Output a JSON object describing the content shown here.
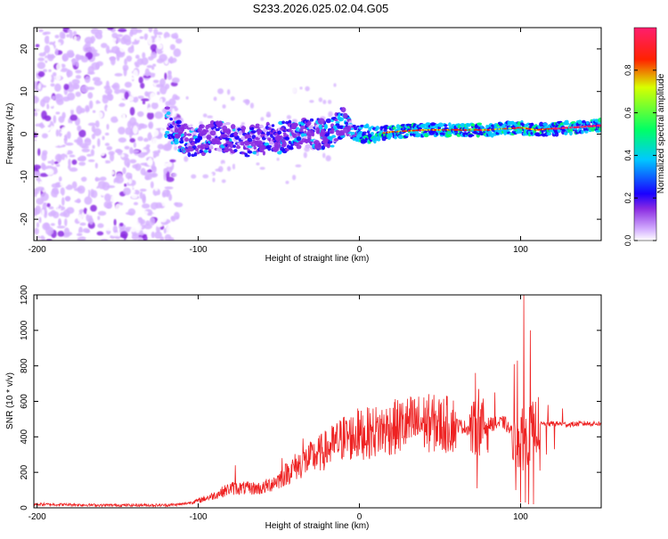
{
  "figure_title": "S233.2026.025.02.04.G05",
  "chart_data": [
    {
      "type": "heatmap",
      "title": "S233.2026.025.02.04.G05",
      "xlabel": "Height of straight line (km)",
      "ylabel": "Frequency (Hz)",
      "xlim": [
        -202,
        150
      ],
      "ylim": [
        -25,
        25
      ],
      "xticks": [
        -200,
        -100,
        0,
        100
      ],
      "xtick_labels": [
        "-200",
        "-100",
        "0",
        "100"
      ],
      "yticks": [
        -20,
        -10,
        0,
        10,
        20
      ],
      "ytick_labels": [
        "-20",
        "-10",
        "0",
        "10",
        "20"
      ],
      "colorbar": {
        "label": "Normalized spectral amplitude",
        "range": [
          0,
          1
        ],
        "ticks": [
          0.0,
          0.2,
          0.4,
          0.6,
          0.8
        ],
        "tick_labels": [
          "0.0",
          "0.2",
          "0.4",
          "0.6",
          "0.8"
        ],
        "colors": [
          "#ffffff",
          "#d6b3ff",
          "#8a2be2",
          "#1a00ff",
          "#00c8ff",
          "#00ff66",
          "#d8ff00",
          "#ff2200",
          "#ff1e6e"
        ]
      },
      "ridge": [
        [
          -120,
          3
        ],
        [
          -110,
          -1
        ],
        [
          -100,
          -2
        ],
        [
          -90,
          0
        ],
        [
          -80,
          -1
        ],
        [
          -70,
          -2
        ],
        [
          -60,
          -1
        ],
        [
          -50,
          -1
        ],
        [
          -40,
          0
        ],
        [
          -30,
          0
        ],
        [
          -20,
          0
        ],
        [
          -15,
          1
        ],
        [
          -10,
          3
        ],
        [
          -5,
          1
        ],
        [
          0,
          0
        ],
        [
          10,
          0
        ],
        [
          20,
          0.5
        ],
        [
          40,
          1
        ],
        [
          60,
          1
        ],
        [
          80,
          1
        ],
        [
          100,
          1.5
        ],
        [
          110,
          1
        ],
        [
          130,
          1.5
        ],
        [
          150,
          2
        ]
      ]
    },
    {
      "type": "line",
      "xlabel": "Height of straight line (km)",
      "ylabel": "SNR (10 * v/v)",
      "xlim": [
        -202,
        150
      ],
      "ylim": [
        0,
        1200
      ],
      "xticks": [
        -200,
        -100,
        0,
        100
      ],
      "xtick_labels": [
        "-200",
        "-100",
        "0",
        "100"
      ],
      "yticks": [
        0,
        200,
        400,
        600,
        800,
        1000,
        1200
      ],
      "ytick_labels": [
        "0",
        "200",
        "400",
        "600",
        "800",
        "1000",
        "1200"
      ],
      "series": [
        {
          "name": "SNR",
          "color": "#ee2222",
          "x": [
            -202,
            -180,
            -160,
            -140,
            -120,
            -110,
            -100,
            -90,
            -80,
            -70,
            -60,
            -50,
            -40,
            -30,
            -20,
            -10,
            0,
            10,
            20,
            30,
            40,
            50,
            60,
            70,
            80,
            90,
            100,
            110,
            120,
            130,
            140,
            150
          ],
          "y": [
            20,
            18,
            15,
            15,
            15,
            20,
            40,
            70,
            110,
            110,
            110,
            160,
            230,
            280,
            330,
            390,
            410,
            430,
            450,
            470,
            480,
            470,
            470,
            440,
            470,
            480,
            350,
            470,
            475,
            470,
            475,
            475
          ],
          "spikes": [
            [
              -77,
              240
            ],
            [
              -48,
              280
            ],
            [
              -35,
              390
            ],
            [
              -10,
              510
            ],
            [
              -1,
              560
            ],
            [
              20,
              480
            ],
            [
              72,
              760
            ],
            [
              74,
              670
            ],
            [
              84,
              650
            ],
            [
              96,
              810
            ],
            [
              98,
              830
            ],
            [
              101,
              560
            ],
            [
              102,
              1200
            ],
            [
              103,
              1030
            ],
            [
              106,
              1000
            ],
            [
              117,
              580
            ],
            [
              126,
              560
            ]
          ],
          "dips": [
            [
              73,
              110
            ],
            [
              97,
              100
            ],
            [
              100,
              30
            ],
            [
              103,
              30
            ],
            [
              105,
              20
            ],
            [
              108,
              20
            ],
            [
              112,
              210
            ],
            [
              116,
              300
            ],
            [
              121,
              330
            ]
          ]
        }
      ]
    }
  ]
}
